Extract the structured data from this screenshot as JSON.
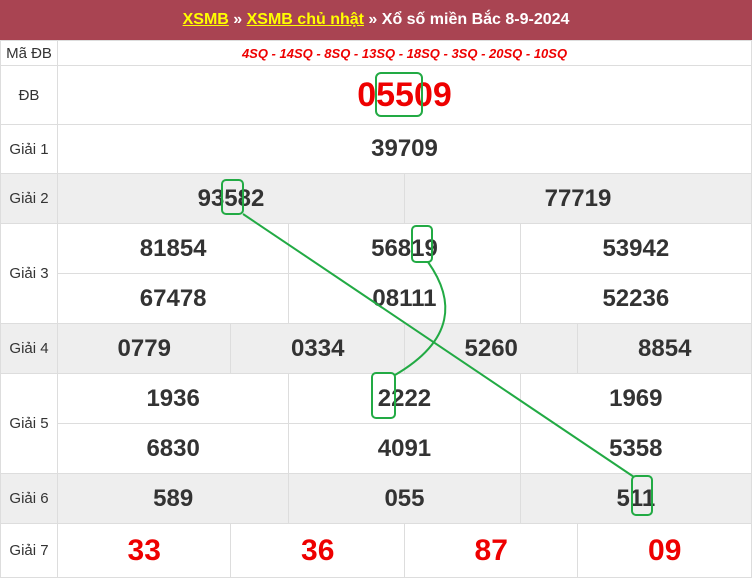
{
  "header": {
    "link1": "XSMB",
    "sep1": " » ",
    "link2": "XSMB chủ nhật",
    "sep2": " » ",
    "title": "Xổ số miền Bắc 8-9-2024"
  },
  "rows": {
    "ma_db": {
      "label": "Mã ĐB",
      "value": "4SQ - 14SQ - 8SQ - 13SQ - 18SQ - 3SQ - 20SQ - 10SQ"
    },
    "db": {
      "label": "ĐB",
      "value": "05509"
    },
    "g1": {
      "label": "Giải 1",
      "values": [
        "39709"
      ]
    },
    "g2": {
      "label": "Giải 2",
      "values": [
        "93582",
        "77719"
      ]
    },
    "g3": {
      "label": "Giải 3",
      "values": [
        "81854",
        "56819",
        "53942",
        "67478",
        "08111",
        "52236"
      ]
    },
    "g4": {
      "label": "Giải 4",
      "values": [
        "0779",
        "0334",
        "5260",
        "8854"
      ]
    },
    "g5": {
      "label": "Giải 5",
      "values": [
        "1936",
        "2222",
        "1969",
        "6830",
        "4091",
        "5358"
      ]
    },
    "g6": {
      "label": "Giải 6",
      "values": [
        "589",
        "055",
        "511"
      ]
    },
    "g7": {
      "label": "Giải 7",
      "values": [
        "33",
        "36",
        "87",
        "09"
      ]
    }
  },
  "colors": {
    "header_bg": "#a94452",
    "link": "#ffff00",
    "special": "#ee0000",
    "highlight": "#22aa44"
  }
}
